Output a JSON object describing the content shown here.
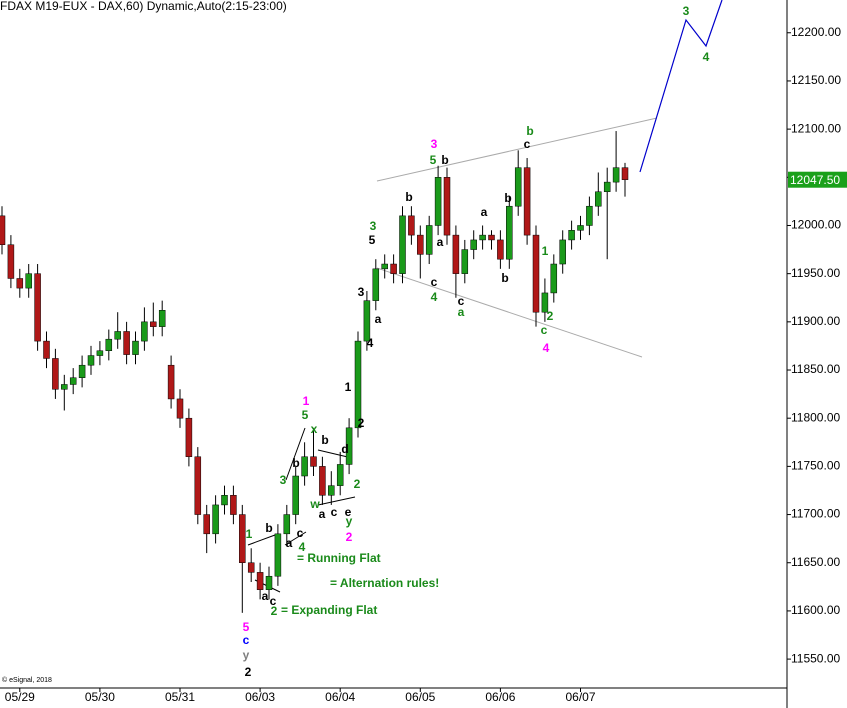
{
  "chart_data": {
    "type": "candlestick",
    "title": "FDAX M19-EUX - DAX,60) Dynamic,Auto(2:15-23:00)",
    "credit": "© eSignal, 2018",
    "categories": [
      null,
      null,
      "05/29",
      null,
      null,
      null,
      null,
      null,
      null,
      null,
      null,
      "05/30",
      null,
      null,
      null,
      null,
      null,
      null,
      null,
      null,
      "05/31",
      null,
      null,
      null,
      null,
      null,
      null,
      null,
      null,
      "06/03",
      null,
      null,
      null,
      null,
      null,
      null,
      null,
      null,
      "06/04",
      null,
      null,
      null,
      null,
      null,
      null,
      null,
      null,
      "06/05",
      null,
      null,
      null,
      null,
      null,
      null,
      null,
      null,
      "06/06",
      null,
      null,
      null,
      null,
      null,
      null,
      null,
      null,
      "06/07",
      null,
      null,
      null,
      null,
      null
    ],
    "open": [
      12010,
      11980,
      11945,
      11935,
      11950,
      11880,
      11862,
      11830,
      11835,
      11842,
      11855,
      11865,
      11870,
      11882,
      11890,
      11866,
      11880,
      11900,
      11895,
      11855,
      11820,
      11800,
      11760,
      11700,
      11680,
      11710,
      11720,
      11700,
      11650,
      11640,
      11622,
      11636,
      11680,
      11700,
      11740,
      11760,
      11750,
      11720,
      11730,
      11752,
      11790,
      11880,
      11922,
      11955,
      11960,
      11950,
      12010,
      11990,
      11970,
      12000,
      12050,
      11990,
      11950,
      11975,
      11985,
      11990,
      11985,
      11965,
      12020,
      12060,
      11990,
      11910,
      11930,
      11960,
      11985,
      11995,
      12000,
      12020,
      12035,
      12045,
      12060
    ],
    "high": [
      12020,
      11990,
      11955,
      11960,
      11960,
      11890,
      11872,
      11845,
      11852,
      11865,
      11875,
      11880,
      11892,
      11910,
      11900,
      11890,
      11915,
      11920,
      11922,
      11865,
      11830,
      11810,
      11770,
      11710,
      11720,
      11730,
      11730,
      11710,
      11665,
      11650,
      11646,
      11690,
      11710,
      11750,
      11775,
      11790,
      11760,
      11745,
      11765,
      11800,
      11890,
      11932,
      11965,
      11970,
      11970,
      12020,
      12020,
      12000,
      12010,
      12062,
      12060,
      12000,
      11985,
      11995,
      12000,
      11995,
      11995,
      12030,
      12078,
      12070,
      12000,
      11945,
      11970,
      11995,
      12005,
      12010,
      12030,
      12055,
      12060,
      12098,
      12065
    ],
    "low": [
      11970,
      11935,
      11925,
      11925,
      11870,
      11852,
      11820,
      11808,
      11825,
      11832,
      11845,
      11855,
      11860,
      11872,
      11856,
      11856,
      11870,
      11885,
      11885,
      11810,
      11790,
      11750,
      11690,
      11660,
      11670,
      11700,
      11690,
      11598,
      11630,
      11612,
      11612,
      11626,
      11670,
      11690,
      11730,
      11740,
      11710,
      11710,
      11720,
      11742,
      11780,
      11870,
      11912,
      11945,
      11940,
      11940,
      11980,
      11945,
      11960,
      11990,
      11980,
      11925,
      11940,
      11965,
      11975,
      11975,
      11955,
      11955,
      12010,
      11980,
      11895,
      11900,
      11920,
      11950,
      11975,
      11985,
      11990,
      12010,
      11965,
      12035,
      12030
    ],
    "close": [
      11980,
      11945,
      11935,
      11950,
      11880,
      11862,
      11830,
      11835,
      11842,
      11855,
      11865,
      11870,
      11882,
      11890,
      11866,
      11880,
      11900,
      11895,
      11912,
      11820,
      11800,
      11760,
      11700,
      11680,
      11710,
      11720,
      11700,
      11650,
      11640,
      11622,
      11636,
      11680,
      11700,
      11740,
      11760,
      11750,
      11720,
      11730,
      11752,
      11790,
      11880,
      11922,
      11955,
      11960,
      11950,
      12010,
      11990,
      11970,
      12000,
      12050,
      11990,
      11950,
      11975,
      11985,
      11990,
      11985,
      11965,
      12020,
      12060,
      11990,
      11910,
      11930,
      11960,
      11985,
      11995,
      12000,
      12020,
      12035,
      12045,
      12060,
      12047.5
    ],
    "up_color": "#1a9a1a",
    "down_color": "#b01818",
    "last_price": {
      "value": 12047.5,
      "label": "12047.50"
    },
    "last_price_color": "#1aa01a",
    "ylim": [
      11520,
      12234
    ],
    "yticks": [
      {
        "value": 11550,
        "label": "11550.00"
      },
      {
        "value": 11600,
        "label": "11600.00"
      },
      {
        "value": 11650,
        "label": "11650.00"
      },
      {
        "value": 11700,
        "label": "11700.00"
      },
      {
        "value": 11750,
        "label": "11750.00"
      },
      {
        "value": 11800,
        "label": "11800.00"
      },
      {
        "value": 11850,
        "label": "11850.00"
      },
      {
        "value": 11900,
        "label": "11900.00"
      },
      {
        "value": 11950,
        "label": "11950.00"
      },
      {
        "value": 12000,
        "label": "12000.00"
      },
      {
        "value": 12050,
        "label": "12050.00"
      },
      {
        "value": 12100,
        "label": "12100.00"
      },
      {
        "value": 12150,
        "label": "12150.00"
      },
      {
        "value": 12200,
        "label": "12200.00"
      }
    ],
    "annotations": [
      {
        "text": "3",
        "color": "#1a8a1a"
      },
      {
        "text": "4",
        "color": "#1a8a1a"
      },
      {
        "text": "3",
        "color": "#ff00ff"
      },
      {
        "text": "5",
        "color": "#1a8a1a"
      },
      {
        "text": "b",
        "color": "#000000"
      },
      {
        "text": "b",
        "color": "#1a8a1a"
      },
      {
        "text": "c",
        "color": "#000000"
      },
      {
        "text": "b",
        "color": "#000000"
      },
      {
        "text": "a",
        "color": "#000000"
      },
      {
        "text": "b",
        "color": "#000000"
      },
      {
        "text": "3",
        "color": "#1a8a1a"
      },
      {
        "text": "5",
        "color": "#000000"
      },
      {
        "text": "a",
        "color": "#000000"
      },
      {
        "text": "b",
        "color": "#000000"
      },
      {
        "text": "1",
        "color": "#1a8a1a"
      },
      {
        "text": "c",
        "color": "#000000"
      },
      {
        "text": "4",
        "color": "#1a8a1a"
      },
      {
        "text": "c",
        "color": "#000000"
      },
      {
        "text": "a",
        "color": "#1a8a1a"
      },
      {
        "text": "2",
        "color": "#1a8a1a"
      },
      {
        "text": "c",
        "color": "#1a8a1a"
      },
      {
        "text": "4",
        "color": "#ff00ff"
      },
      {
        "text": "3",
        "color": "#000000"
      },
      {
        "text": "a",
        "color": "#000000"
      },
      {
        "text": "4",
        "color": "#000000"
      },
      {
        "text": "1",
        "color": "#000000"
      },
      {
        "text": "2",
        "color": "#000000"
      },
      {
        "text": "1",
        "color": "#ff00ff"
      },
      {
        "text": "5",
        "color": "#1a8a1a"
      },
      {
        "text": "x",
        "color": "#1a8a1a"
      },
      {
        "text": "b",
        "color": "#000000"
      },
      {
        "text": "d",
        "color": "#000000"
      },
      {
        "text": "3",
        "color": "#1a8a1a"
      },
      {
        "text": "b",
        "color": "#000000"
      },
      {
        "text": "2",
        "color": "#1a8a1a"
      },
      {
        "text": "w",
        "color": "#1a8a1a"
      },
      {
        "text": "a",
        "color": "#000000"
      },
      {
        "text": "c",
        "color": "#000000"
      },
      {
        "text": "e",
        "color": "#000000"
      },
      {
        "text": "y",
        "color": "#1a8a1a"
      },
      {
        "text": "2",
        "color": "#ff00ff"
      },
      {
        "text": "1",
        "color": "#1a8a1a"
      },
      {
        "text": "b",
        "color": "#000000"
      },
      {
        "text": "a",
        "color": "#000000"
      },
      {
        "text": "c",
        "color": "#000000"
      },
      {
        "text": "4",
        "color": "#1a8a1a"
      },
      {
        "text": "= Running Flat",
        "color": "#1a8a1a"
      },
      {
        "text": "= Alternation rules!",
        "color": "#1a8a1a"
      },
      {
        "text": "a",
        "color": "#000000"
      },
      {
        "text": "c",
        "color": "#000000"
      },
      {
        "text": "2",
        "color": "#1a8a1a"
      },
      {
        "text": "= Expanding Flat",
        "color": "#1a8a1a"
      },
      {
        "text": "5",
        "color": "#ff00ff"
      },
      {
        "text": "c",
        "color": "#0000ff"
      },
      {
        "text": "y",
        "color": "#808080"
      },
      {
        "text": "2",
        "color": "#000000"
      }
    ]
  }
}
